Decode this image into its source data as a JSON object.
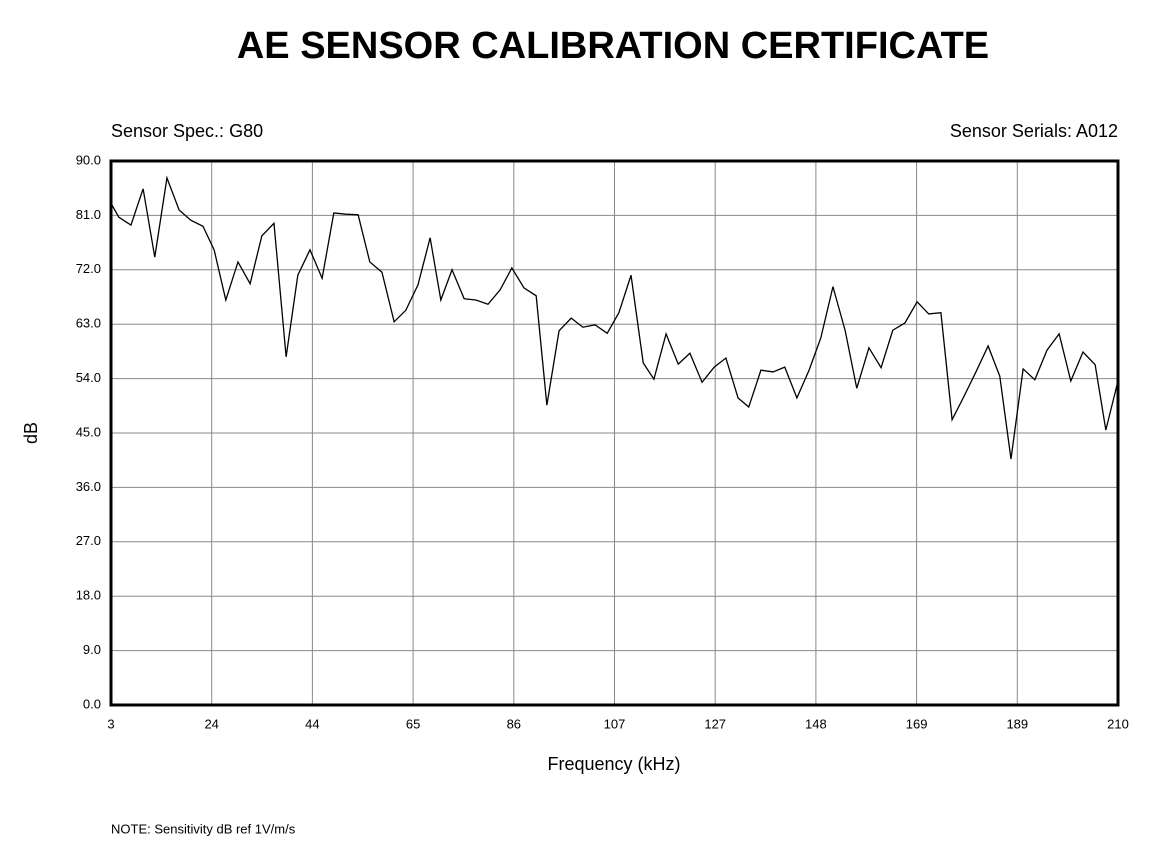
{
  "chart_data": {
    "type": "line",
    "title": "AE SENSOR CALIBRATION CERTIFICATE",
    "subtitle_left": "Sensor Spec.: G80",
    "subtitle_right": "Sensor Serials: A012",
    "xlabel": "Frequency (kHz)",
    "ylabel": "dB",
    "note": "NOTE:  Sensitivity dB ref 1V/m/s",
    "x": [
      3.0,
      4.6,
      7.1,
      9.6,
      12.0,
      14.5,
      17.0,
      19.4,
      21.9,
      24.2,
      26.6,
      29.1,
      31.6,
      34.0,
      36.5,
      39.0,
      41.4,
      43.9,
      46.4,
      48.8,
      51.3,
      53.8,
      56.2,
      58.7,
      61.2,
      63.6,
      66.1,
      68.6,
      70.8,
      73.1,
      75.6,
      78.0,
      80.5,
      83.0,
      85.4,
      87.9,
      90.4,
      92.6,
      95.1,
      97.6,
      100.0,
      102.5,
      105.0,
      107.4,
      109.9,
      112.4,
      114.6,
      117.1,
      119.6,
      122.0,
      124.5,
      127.0,
      129.4,
      131.9,
      134.1,
      136.6,
      139.1,
      141.5,
      144.0,
      146.5,
      148.9,
      151.4,
      153.9,
      156.3,
      158.8,
      161.3,
      163.7,
      166.2,
      168.7,
      171.1,
      173.6,
      175.9,
      178.3,
      180.8,
      183.3,
      185.7,
      188.0,
      190.5,
      192.9,
      195.4,
      197.9,
      200.3,
      202.8,
      205.3,
      207.5,
      210.0
    ],
    "series": [
      {
        "name": "dB",
        "color": "#000000",
        "values": [
          83.0,
          80.7,
          79.4,
          85.4,
          74.1,
          87.2,
          81.9,
          80.2,
          79.2,
          75.3,
          67.0,
          73.3,
          69.7,
          77.6,
          79.7,
          57.6,
          71.1,
          75.3,
          70.6,
          81.4,
          81.2,
          81.1,
          73.3,
          71.6,
          63.4,
          65.3,
          69.5,
          77.3,
          67.0,
          72.0,
          67.2,
          67.0,
          66.3,
          68.7,
          72.3,
          69.0,
          67.7,
          49.6,
          61.9,
          64.0,
          62.5,
          62.9,
          61.5,
          64.9,
          71.1,
          56.6,
          53.9,
          61.4,
          56.4,
          58.2,
          53.4,
          55.9,
          57.4,
          50.8,
          49.3,
          55.4,
          55.1,
          55.9,
          50.8,
          55.4,
          60.7,
          69.2,
          62.0,
          52.4,
          59.1,
          55.8,
          62.0,
          63.2,
          66.7,
          64.7,
          64.9,
          47.2,
          51.0,
          55.1,
          59.4,
          54.4,
          40.7,
          55.6,
          53.8,
          58.7,
          61.4,
          53.6,
          58.4,
          56.3,
          45.5,
          53.6
        ]
      }
    ],
    "xlim": [
      3,
      210
    ],
    "ylim": [
      0,
      90
    ],
    "xticks": [
      3,
      {
        "value": 23.7,
        "label": "24"
      },
      {
        "value": 44.4,
        "label": "44"
      },
      {
        "value": 65.1,
        "label": "65"
      },
      {
        "value": 85.8,
        "label": "86"
      },
      {
        "value": 106.5,
        "label": "107"
      },
      {
        "value": 127.2,
        "label": "127"
      },
      {
        "value": 147.9,
        "label": "148"
      },
      {
        "value": 168.6,
        "label": "169"
      },
      {
        "value": 189.3,
        "label": "189"
      },
      210
    ],
    "yticks": [
      {
        "value": 0,
        "label": "0.0"
      },
      {
        "value": 9,
        "label": "9.0"
      },
      {
        "value": 18,
        "label": "18.0"
      },
      {
        "value": 27,
        "label": "27.0"
      },
      {
        "value": 36,
        "label": "36.0"
      },
      {
        "value": 45,
        "label": "45.0"
      },
      {
        "value": 54,
        "label": "54.0"
      },
      {
        "value": 63,
        "label": "63.0"
      },
      {
        "value": 72,
        "label": "72.0"
      },
      {
        "value": 81,
        "label": "81.0"
      },
      {
        "value": 90,
        "label": "90.0"
      }
    ],
    "grid": true
  }
}
